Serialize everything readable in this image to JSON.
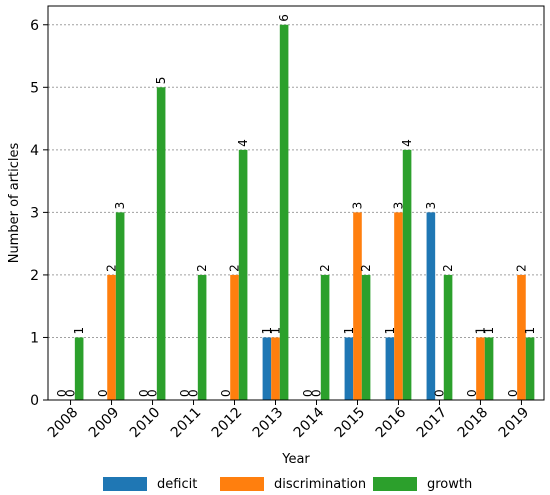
{
  "chart_data": {
    "type": "bar",
    "title": "",
    "xlabel": "Year",
    "ylabel": "Number of articles",
    "categories": [
      "2008",
      "2009",
      "2010",
      "2011",
      "2012",
      "2013",
      "2014",
      "2015",
      "2016",
      "2017",
      "2018",
      "2019"
    ],
    "series": [
      {
        "name": "deficit",
        "color": "#1f77b4",
        "values": [
          0,
          0,
          0,
          0,
          0,
          1,
          0,
          1,
          1,
          3,
          0,
          0
        ]
      },
      {
        "name": "discrimination",
        "color": "#ff7f0e",
        "values": [
          0,
          2,
          0,
          0,
          2,
          1,
          0,
          3,
          3,
          0,
          1,
          2
        ]
      },
      {
        "name": "growth",
        "color": "#2ca02c",
        "values": [
          1,
          3,
          5,
          2,
          4,
          6,
          2,
          2,
          4,
          2,
          1,
          1
        ]
      }
    ],
    "ylim": [
      0,
      6.3
    ],
    "yticks": [
      0,
      1,
      2,
      3,
      4,
      5,
      6
    ],
    "grid": "horizontal-dotted",
    "legend_position": "bottom"
  }
}
